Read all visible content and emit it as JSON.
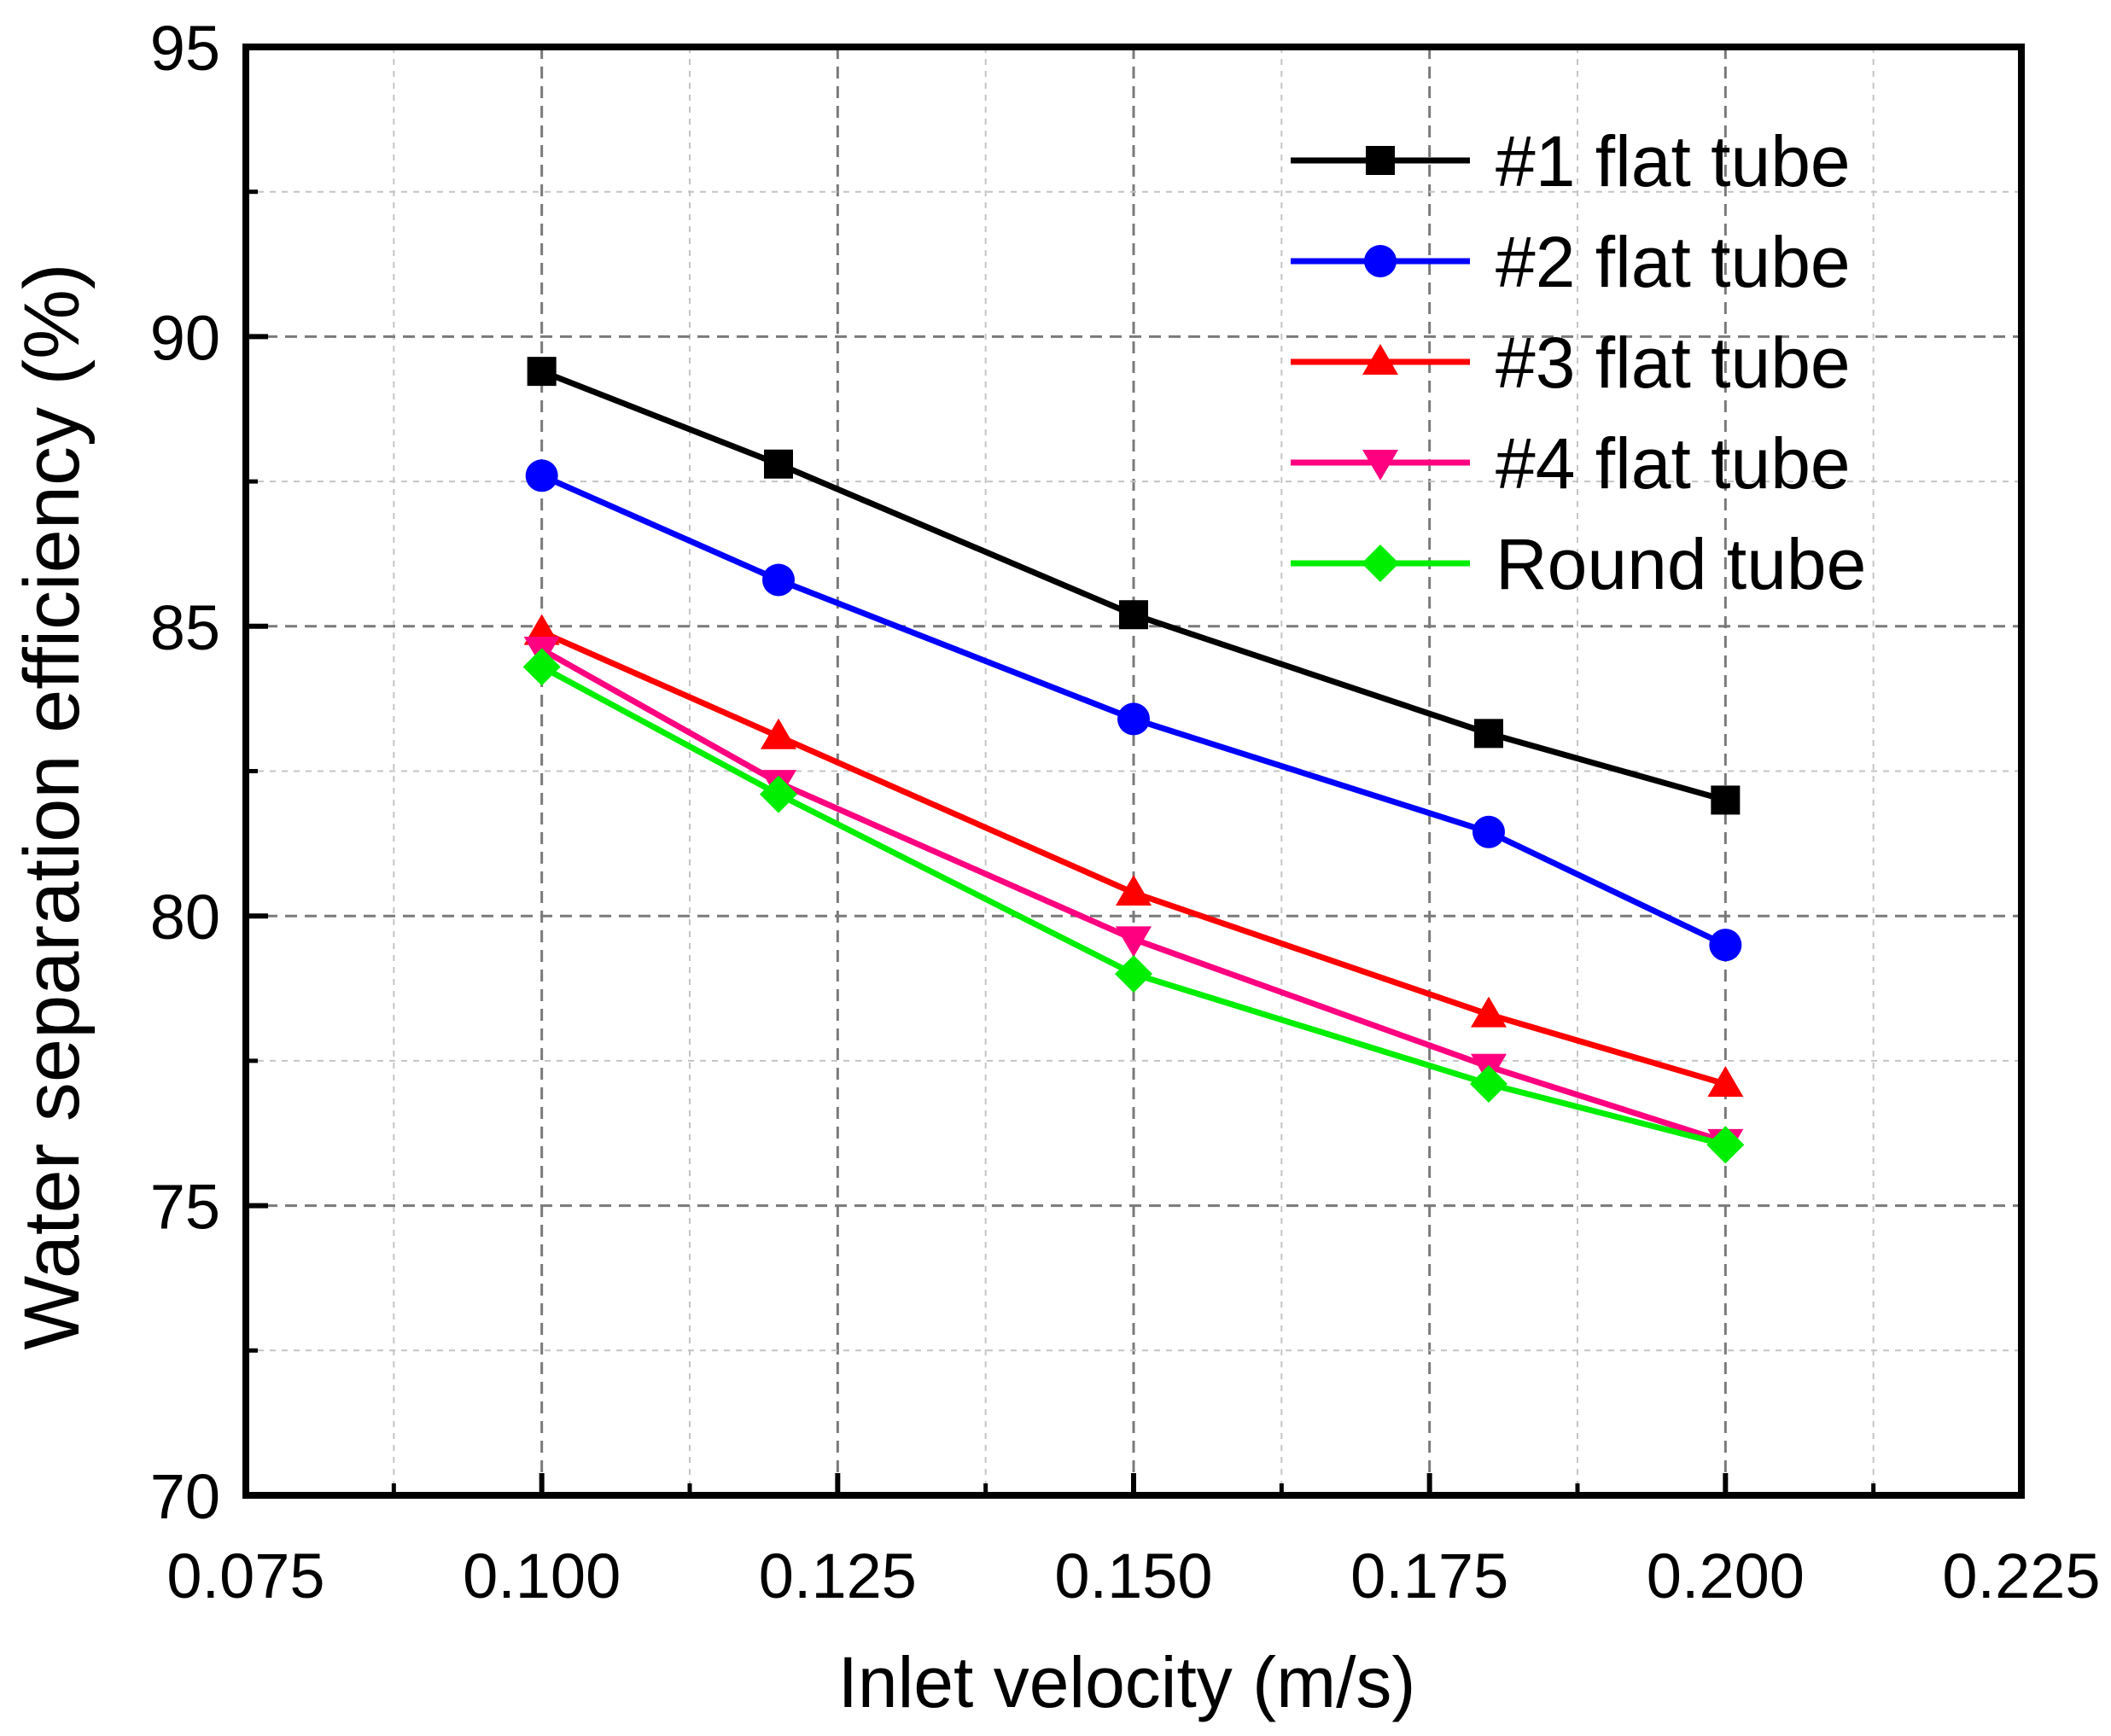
{
  "chart_data": {
    "type": "line",
    "title": "",
    "xlabel": "Inlet velocity (m/s)",
    "ylabel": "Water separation efficiency (%)",
    "xlim": [
      0.075,
      0.225
    ],
    "ylim": [
      70,
      95
    ],
    "xticks": [
      0.075,
      0.1,
      0.125,
      0.15,
      0.175,
      0.2,
      0.225
    ],
    "xtick_labels": [
      "0.075",
      "0.100",
      "0.125",
      "0.150",
      "0.175",
      "0.200",
      "0.225"
    ],
    "yticks": [
      70,
      75,
      80,
      85,
      90,
      95
    ],
    "ytick_labels": [
      "70",
      "75",
      "80",
      "85",
      "90",
      "95"
    ],
    "grid": true,
    "legend_position": "top-right",
    "x": [
      0.1,
      0.12,
      0.15,
      0.18,
      0.2
    ],
    "series": [
      {
        "name": "#1 flat tube",
        "color": "#000000",
        "marker": "square",
        "values": [
          89.4,
          87.8,
          85.2,
          83.15,
          82.0
        ]
      },
      {
        "name": "#2 flat tube",
        "color": "#0000ff",
        "marker": "circle",
        "values": [
          87.6,
          85.8,
          83.4,
          81.45,
          79.5
        ]
      },
      {
        "name": "#3 flat tube",
        "color": "#ff0000",
        "marker": "triangle-up",
        "values": [
          84.9,
          83.1,
          80.4,
          78.3,
          77.1
        ]
      },
      {
        "name": "#4 flat tube",
        "color": "#ff0080",
        "marker": "triangle-down",
        "values": [
          84.6,
          82.3,
          79.6,
          77.4,
          76.1
        ]
      },
      {
        "name": "Round tube",
        "color": "#00ee00",
        "marker": "diamond",
        "values": [
          84.3,
          82.1,
          79.0,
          77.1,
          76.05
        ]
      }
    ]
  }
}
